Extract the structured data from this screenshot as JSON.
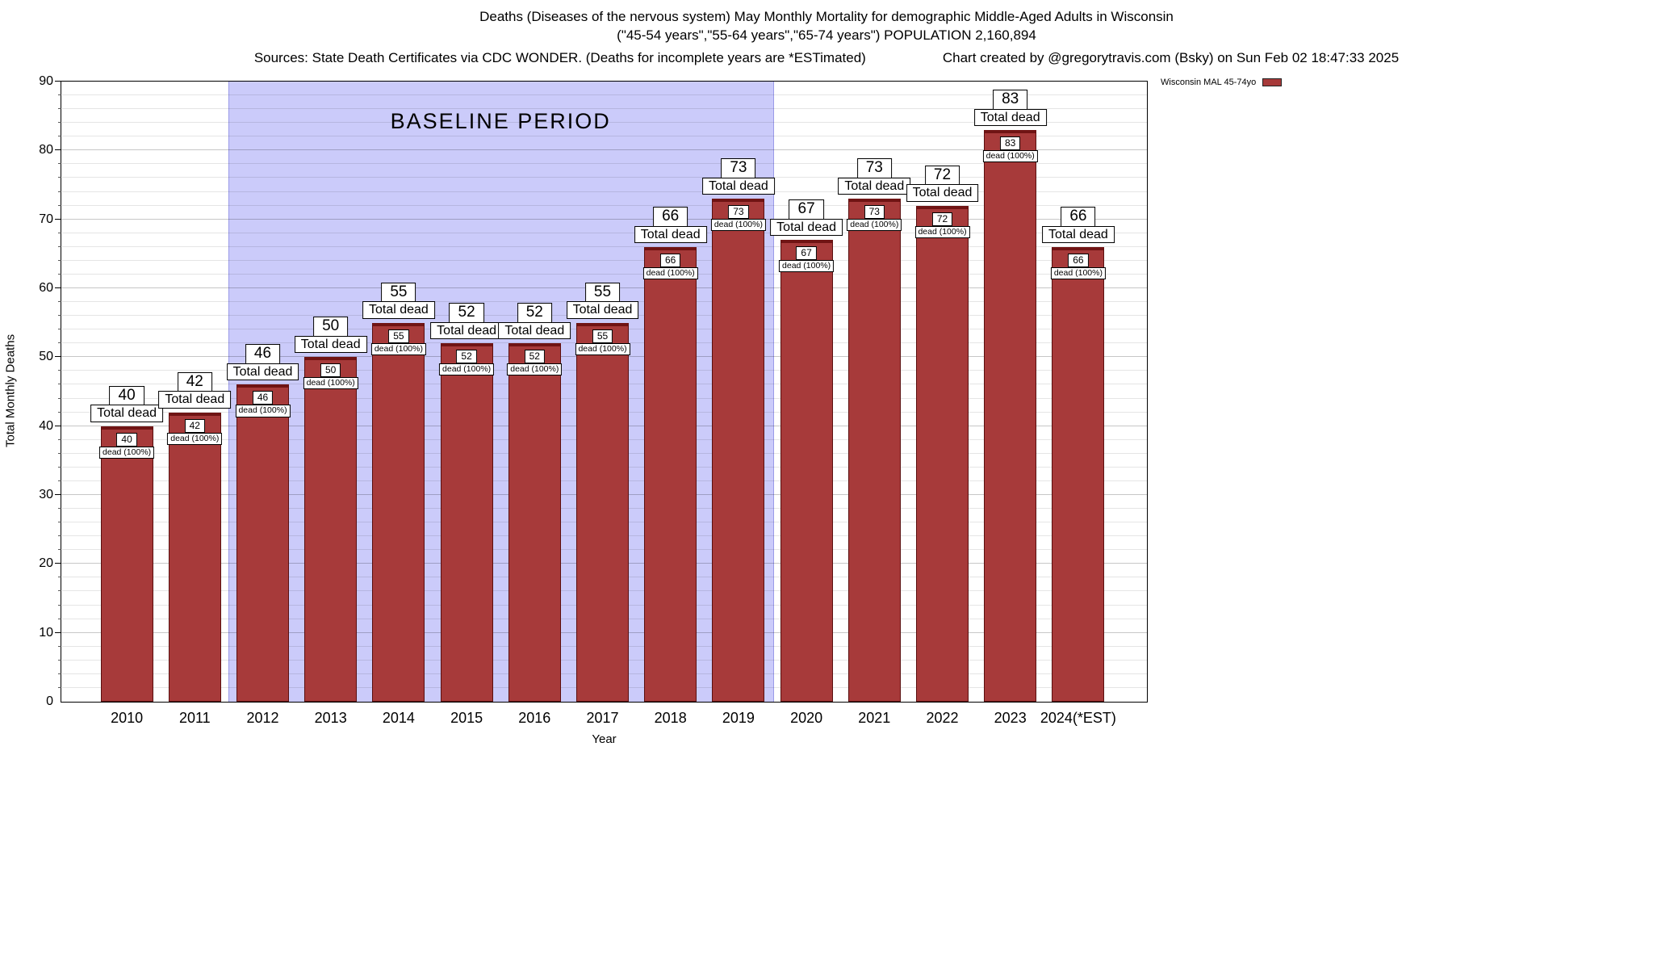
{
  "header": {
    "sources": "Sources: State Death Certificates via CDC WONDER. (Deaths for incomplete years are *ESTimated)",
    "credit": "Chart created by @gregorytravis.com (Bsky) on Sun Feb 02 18:47:33 2025"
  },
  "legend": {
    "label": "Wisconsin MAL 45-74yo"
  },
  "chart_data": {
    "type": "bar",
    "title": "Deaths (Diseases of the nervous system) May Monthly Mortality for demographic Middle-Aged Adults in Wisconsin",
    "subtitle": "(\"45-54 years\",\"55-64 years\",\"65-74 years\") POPULATION 2,160,894",
    "xlabel": "Year",
    "ylabel": "Total Monthly Deaths",
    "ylim": [
      0,
      90
    ],
    "y_major_step": 10,
    "y_minor_step": 2,
    "grid": true,
    "legend_position": "top-right",
    "series_name": "Wisconsin MAL 45-74yo",
    "categories": [
      "2010",
      "2011",
      "2012",
      "2013",
      "2014",
      "2015",
      "2016",
      "2017",
      "2018",
      "2019",
      "2020",
      "2021",
      "2022",
      "2023",
      "2024(*EST)"
    ],
    "values": [
      40,
      42,
      46,
      50,
      55,
      52,
      52,
      55,
      66,
      73,
      67,
      73,
      72,
      83,
      66
    ],
    "bar_total_label": "Total dead",
    "bar_sublabel": "dead (100%)",
    "baseline_region": {
      "label": "BASELINE PERIOD",
      "start_category": "2012",
      "end_category": "2019",
      "start_index": 2,
      "end_index": 9
    },
    "colors": {
      "bar_fill": "#A73A3A",
      "bar_cap": "#701414",
      "bar_border": "#5A0F0F",
      "baseline_fill": "#CBCBFA",
      "baseline_edge": "#9B9BE8"
    }
  }
}
